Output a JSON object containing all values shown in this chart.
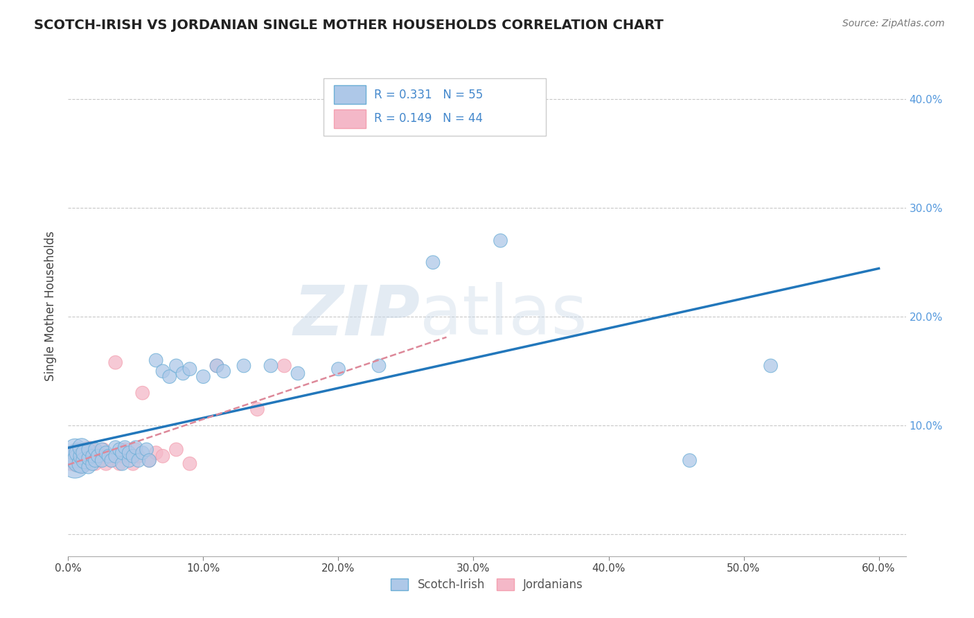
{
  "title": "SCOTCH-IRISH VS JORDANIAN SINGLE MOTHER HOUSEHOLDS CORRELATION CHART",
  "source": "Source: ZipAtlas.com",
  "ylabel": "Single Mother Households",
  "xlim": [
    0.0,
    0.62
  ],
  "ylim": [
    -0.02,
    0.44
  ],
  "xticks": [
    0.0,
    0.1,
    0.2,
    0.3,
    0.4,
    0.5,
    0.6
  ],
  "yticks": [
    0.0,
    0.1,
    0.2,
    0.3,
    0.4
  ],
  "xtick_labels": [
    "0.0%",
    "10.0%",
    "20.0%",
    "30.0%",
    "40.0%",
    "50.0%",
    "60.0%"
  ],
  "ytick_labels_right": [
    "",
    "10.0%",
    "20.0%",
    "30.0%",
    "40.0%"
  ],
  "grid_color": "#c8c8c8",
  "background_color": "#ffffff",
  "scotch_irish_color": "#6baed6",
  "scotch_irish_fill": "#aec8e8",
  "jordanian_color": "#f4a0b0",
  "jordanian_fill": "#f4b8c8",
  "line_blue": "#2277bb",
  "line_pink": "#dd8899",
  "scotch_irish_R": 0.331,
  "scotch_irish_N": 55,
  "jordanian_R": 0.149,
  "jordanian_N": 44,
  "legend_scotch_label": "Scotch-Irish",
  "legend_jordan_label": "Jordanians",
  "scotch_irish_x": [
    0.005,
    0.005,
    0.005,
    0.008,
    0.008,
    0.01,
    0.01,
    0.01,
    0.012,
    0.012,
    0.015,
    0.015,
    0.015,
    0.018,
    0.018,
    0.02,
    0.02,
    0.022,
    0.025,
    0.025,
    0.028,
    0.03,
    0.032,
    0.035,
    0.035,
    0.038,
    0.04,
    0.04,
    0.042,
    0.045,
    0.045,
    0.048,
    0.05,
    0.052,
    0.055,
    0.058,
    0.06,
    0.065,
    0.07,
    0.075,
    0.08,
    0.085,
    0.09,
    0.1,
    0.11,
    0.115,
    0.13,
    0.15,
    0.17,
    0.2,
    0.23,
    0.27,
    0.32,
    0.46,
    0.52
  ],
  "scotch_irish_y": [
    0.065,
    0.072,
    0.078,
    0.068,
    0.075,
    0.065,
    0.072,
    0.08,
    0.068,
    0.075,
    0.062,
    0.07,
    0.078,
    0.065,
    0.072,
    0.068,
    0.078,
    0.072,
    0.068,
    0.078,
    0.075,
    0.072,
    0.068,
    0.08,
    0.072,
    0.078,
    0.065,
    0.075,
    0.08,
    0.068,
    0.075,
    0.072,
    0.08,
    0.068,
    0.075,
    0.078,
    0.068,
    0.16,
    0.15,
    0.145,
    0.155,
    0.148,
    0.152,
    0.145,
    0.155,
    0.15,
    0.155,
    0.155,
    0.148,
    0.152,
    0.155,
    0.25,
    0.27,
    0.068,
    0.155
  ],
  "scotch_irish_size": [
    900,
    600,
    500,
    600,
    400,
    400,
    300,
    350,
    300,
    300,
    200,
    200,
    200,
    200,
    200,
    200,
    200,
    200,
    200,
    200,
    200,
    200,
    200,
    200,
    200,
    200,
    200,
    200,
    200,
    200,
    200,
    200,
    200,
    200,
    200,
    200,
    200,
    200,
    200,
    200,
    200,
    200,
    200,
    200,
    200,
    200,
    200,
    200,
    200,
    200,
    200,
    200,
    200,
    200,
    200
  ],
  "jordanian_x": [
    0.002,
    0.003,
    0.004,
    0.005,
    0.006,
    0.006,
    0.007,
    0.008,
    0.009,
    0.01,
    0.01,
    0.012,
    0.012,
    0.014,
    0.015,
    0.016,
    0.017,
    0.018,
    0.02,
    0.02,
    0.022,
    0.023,
    0.025,
    0.026,
    0.028,
    0.03,
    0.032,
    0.035,
    0.038,
    0.04,
    0.042,
    0.045,
    0.048,
    0.05,
    0.052,
    0.055,
    0.06,
    0.065,
    0.07,
    0.08,
    0.09,
    0.11,
    0.14,
    0.16
  ],
  "jordanian_y": [
    0.065,
    0.07,
    0.068,
    0.072,
    0.065,
    0.078,
    0.068,
    0.075,
    0.07,
    0.065,
    0.075,
    0.068,
    0.072,
    0.065,
    0.078,
    0.068,
    0.072,
    0.078,
    0.065,
    0.072,
    0.075,
    0.068,
    0.072,
    0.078,
    0.065,
    0.072,
    0.068,
    0.158,
    0.065,
    0.072,
    0.078,
    0.072,
    0.065,
    0.078,
    0.072,
    0.13,
    0.068,
    0.075,
    0.072,
    0.078,
    0.065,
    0.155,
    0.115,
    0.155
  ],
  "jordanian_size": [
    200,
    200,
    300,
    400,
    300,
    200,
    300,
    400,
    200,
    400,
    300,
    400,
    200,
    200,
    300,
    200,
    200,
    200,
    200,
    200,
    200,
    200,
    200,
    200,
    200,
    200,
    200,
    200,
    200,
    200,
    200,
    200,
    200,
    200,
    200,
    200,
    200,
    200,
    200,
    200,
    200,
    200,
    200,
    200
  ]
}
